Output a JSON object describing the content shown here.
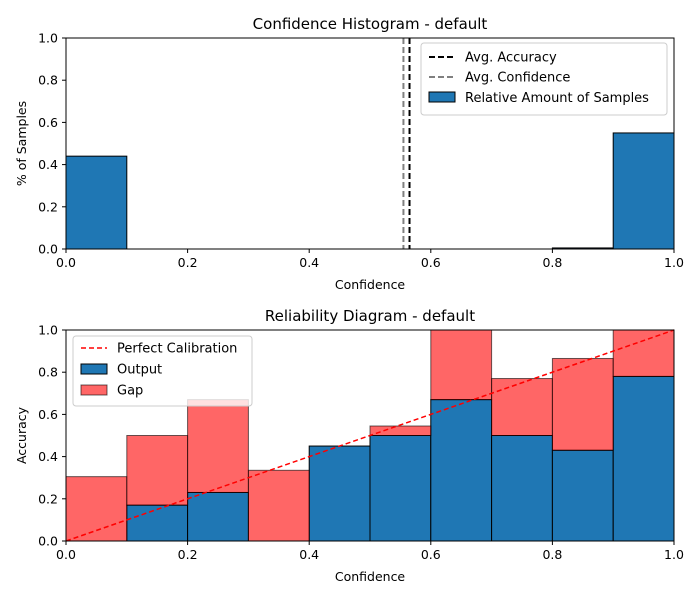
{
  "chart_data": [
    {
      "type": "bar",
      "title": "Confidence Histogram - default",
      "xlabel": "Confidence",
      "ylabel": "% of Samples",
      "xlim": [
        0,
        1
      ],
      "ylim": [
        0,
        1
      ],
      "x_ticks": [
        "0.0",
        "0.2",
        "0.4",
        "0.6",
        "0.8",
        "1.0"
      ],
      "y_ticks": [
        "0.0",
        "0.2",
        "0.4",
        "0.6",
        "0.8",
        "1.0"
      ],
      "bin_edges": [
        0.0,
        0.1,
        0.2,
        0.3,
        0.4,
        0.5,
        0.6,
        0.7,
        0.8,
        0.9,
        1.0
      ],
      "series": [
        {
          "name": "Relative Amount of Samples",
          "color": "#1f77b4",
          "values": [
            0.44,
            0,
            0,
            0,
            0,
            0,
            0,
            0,
            0.005,
            0.55
          ]
        }
      ],
      "vlines": [
        {
          "name": "Avg. Accuracy",
          "x": 0.565,
          "color": "#000000",
          "style": "dashed"
        },
        {
          "name": "Avg. Confidence",
          "x": 0.555,
          "color": "#808080",
          "style": "dashed"
        }
      ],
      "legend": {
        "position": "top-right",
        "entries": [
          "Avg. Accuracy",
          "Avg. Confidence",
          "Relative Amount of Samples"
        ]
      }
    },
    {
      "type": "bar",
      "title": "Reliability Diagram - default",
      "xlabel": "Confidence",
      "ylabel": "Accuracy",
      "xlim": [
        0,
        1
      ],
      "ylim": [
        0,
        1
      ],
      "x_ticks": [
        "0.0",
        "0.2",
        "0.4",
        "0.6",
        "0.8",
        "1.0"
      ],
      "y_ticks": [
        "0.0",
        "0.2",
        "0.4",
        "0.6",
        "0.8",
        "1.0"
      ],
      "bin_edges": [
        0.0,
        0.1,
        0.2,
        0.3,
        0.4,
        0.5,
        0.6,
        0.7,
        0.8,
        0.9,
        1.0
      ],
      "series": [
        {
          "name": "Output",
          "color": "#1f77b4",
          "values": [
            0.0,
            0.17,
            0.23,
            0.0,
            0.45,
            0.5,
            0.67,
            0.5,
            0.43,
            0.78
          ]
        },
        {
          "name": "Gap",
          "color": "#ff0000",
          "alpha": 0.6,
          "bottom": [
            0.0,
            0.17,
            0.23,
            0.0,
            0.45,
            0.5,
            0.67,
            0.5,
            0.43,
            0.78
          ],
          "top": [
            0.305,
            0.5,
            0.67,
            0.335,
            0.45,
            0.545,
            1.0,
            0.77,
            0.865,
            1.0
          ]
        }
      ],
      "perfect_calibration": {
        "name": "Perfect Calibration",
        "from": [
          0,
          0
        ],
        "to": [
          1,
          1
        ],
        "color": "#ff0000",
        "style": "dashed"
      },
      "legend": {
        "position": "top-left",
        "entries": [
          "Perfect Calibration",
          "Output",
          "Gap"
        ]
      }
    }
  ]
}
